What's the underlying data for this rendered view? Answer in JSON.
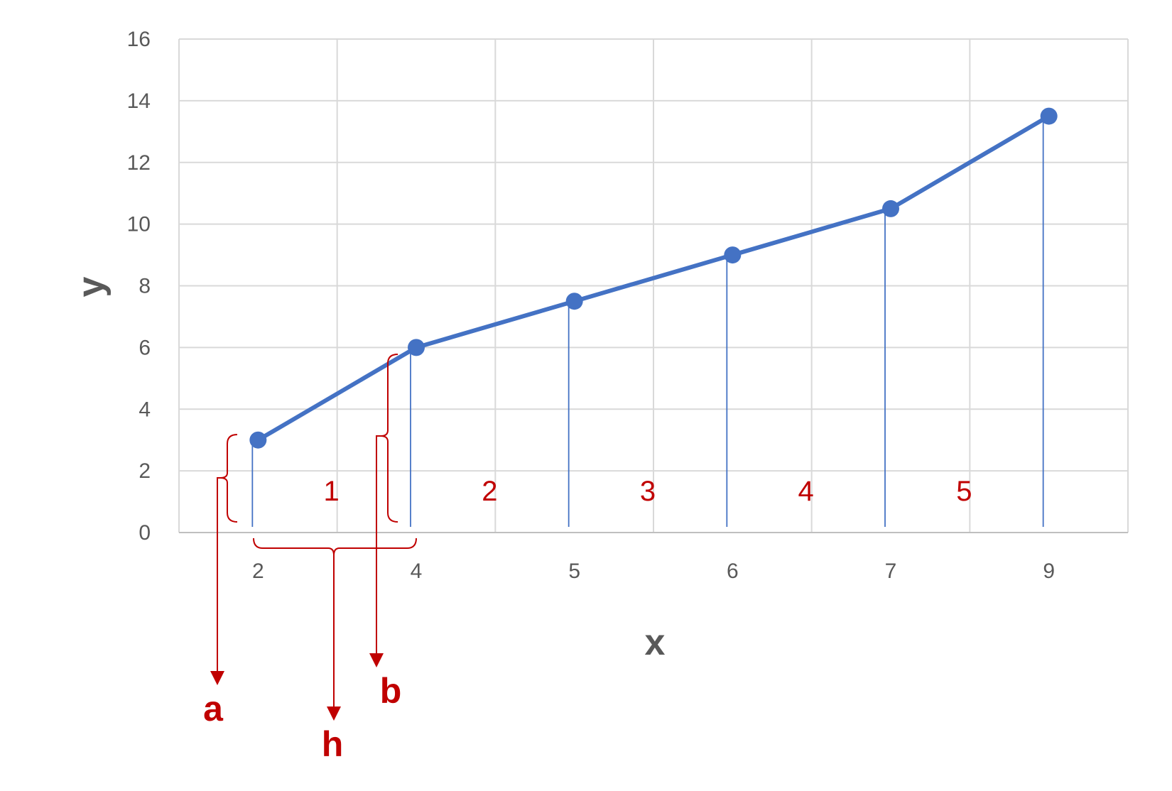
{
  "chart_data": {
    "type": "line",
    "xlabel": "x",
    "ylabel": "y",
    "ylim": [
      0,
      16
    ],
    "y_ticks": [
      "0",
      "2",
      "4",
      "6",
      "8",
      "10",
      "12",
      "14",
      "16"
    ],
    "categories": [
      "2",
      "4",
      "5",
      "6",
      "7",
      "9"
    ],
    "series": [
      {
        "values": [
          3,
          6,
          7.5,
          9,
          10.5,
          13.5
        ]
      }
    ],
    "grid": true,
    "segment_labels": [
      "1",
      "2",
      "3",
      "4",
      "5"
    ],
    "annotations": {
      "a": "a",
      "b": "b",
      "h": "h"
    },
    "colors": {
      "series": "#4472c4",
      "annotation": "#c00000",
      "grid": "#d9d9d9",
      "text": "#595959"
    }
  }
}
